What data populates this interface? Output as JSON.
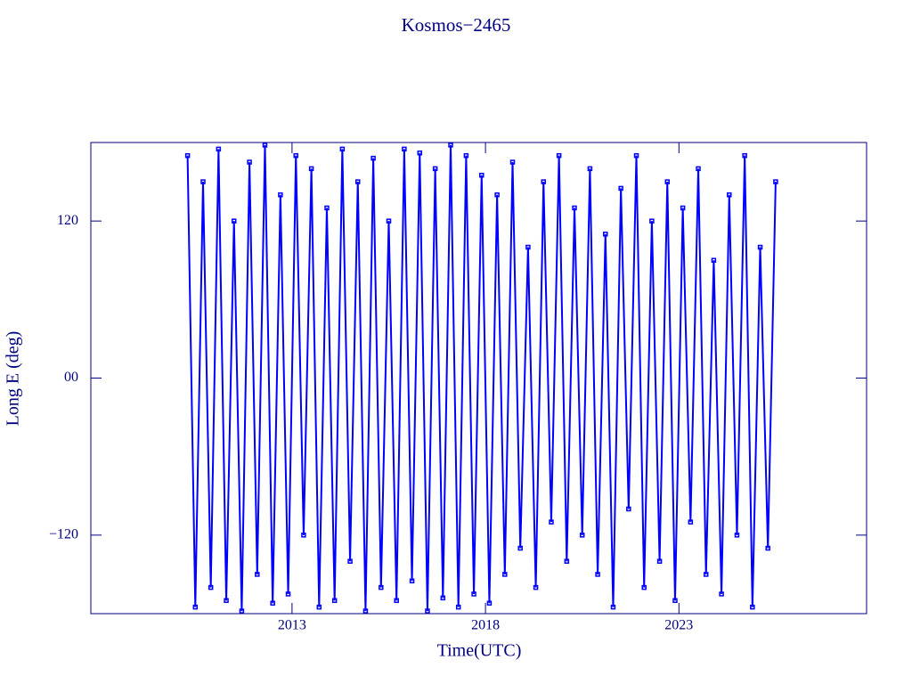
{
  "chart_data": {
    "type": "line",
    "title": "Kosmos−2465",
    "xlabel": "Time(UTC)",
    "ylabel": "Long E (deg)",
    "xlim": [
      2007.8,
      2027.85
    ],
    "xticks": [
      2013,
      2018,
      2023
    ],
    "ylim": [
      -180,
      180
    ],
    "yticks": [
      {
        "value": 120,
        "label": "120"
      },
      {
        "value": 0,
        "label": "00"
      },
      {
        "value": -120,
        "label": "−120"
      }
    ],
    "color": "#0000ff",
    "axis_color": "#000080",
    "x": [
      2010.3,
      2010.5,
      2010.7,
      2010.9,
      2011.1,
      2011.3,
      2011.5,
      2011.7,
      2011.9,
      2012.1,
      2012.3,
      2012.5,
      2012.7,
      2012.9,
      2013.1,
      2013.3,
      2013.5,
      2013.7,
      2013.9,
      2014.1,
      2014.3,
      2014.5,
      2014.7,
      2014.9,
      2015.1,
      2015.3,
      2015.5,
      2015.7,
      2015.9,
      2016.1,
      2016.3,
      2016.5,
      2016.7,
      2016.9,
      2017.1,
      2017.3,
      2017.5,
      2017.7,
      2017.9,
      2018.1,
      2018.3,
      2018.5,
      2018.7,
      2018.9,
      2019.1,
      2019.3,
      2019.5,
      2019.7,
      2019.9,
      2020.1,
      2020.3,
      2020.5,
      2020.7,
      2020.9,
      2021.1,
      2021.3,
      2021.5,
      2021.7,
      2021.9,
      2022.1,
      2022.3,
      2022.5,
      2022.7,
      2022.9,
      2023.1,
      2023.3,
      2023.5,
      2023.7,
      2023.9,
      2024.1,
      2024.3,
      2024.5,
      2024.7,
      2024.9,
      2025.1,
      2025.3,
      2025.5
    ],
    "values": [
      170,
      -175,
      150,
      -160,
      175,
      -170,
      120,
      -178,
      165,
      -150,
      178,
      -172,
      140,
      -165,
      170,
      -120,
      160,
      -175,
      130,
      -170,
      175,
      -140,
      150,
      -178,
      168,
      -160,
      120,
      -170,
      175,
      -155,
      172,
      -178,
      160,
      -168,
      178,
      -175,
      170,
      -165,
      155,
      -172,
      140,
      -150,
      165,
      -130,
      100,
      -160,
      150,
      -110,
      170,
      -140,
      130,
      -120,
      160,
      -150,
      110,
      -175,
      145,
      -100,
      170,
      -160,
      120,
      -140,
      150,
      -170,
      130,
      -110,
      160,
      -150,
      90,
      -165,
      140,
      -120,
      170,
      -175,
      100,
      -130,
      150
    ]
  }
}
